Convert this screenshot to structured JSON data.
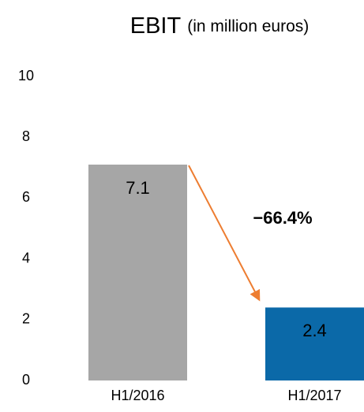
{
  "chart_data": {
    "type": "bar",
    "title": "EBIT",
    "subtitle": "(in million euros)",
    "categories": [
      "H1/2016",
      "H1/2017"
    ],
    "values": [
      7.1,
      2.4
    ],
    "colors": [
      "#a6a6a6",
      "#0b69a8"
    ],
    "ylim": [
      0,
      10
    ],
    "yticks": [
      0,
      2,
      4,
      6,
      8,
      10
    ],
    "grid": false,
    "annotation": "−66.4%",
    "annotation_color": "#ed7d31"
  }
}
